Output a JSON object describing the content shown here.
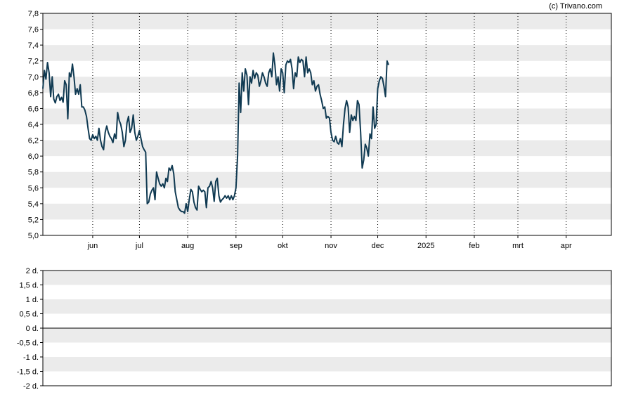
{
  "credit": "(c) Trivano.com",
  "colors": {
    "line": "#103a52",
    "band": "#ebebeb",
    "grid": "#000000",
    "axis": "#000000"
  },
  "chart_data": [
    {
      "type": "line",
      "title": "",
      "xlabel": "",
      "ylabel": "",
      "ylim": [
        5.0,
        7.8
      ],
      "yticks": [
        "5,0",
        "5,2",
        "5,4",
        "5,6",
        "5,8",
        "6,0",
        "6,2",
        "6,4",
        "6,6",
        "6,8",
        "7,0",
        "7,2",
        "7,4",
        "7,6",
        "7,8"
      ],
      "x_range_days": [
        0,
        365
      ],
      "xticks": [
        {
          "label": "jun",
          "day": 32
        },
        {
          "label": "jul",
          "day": 62
        },
        {
          "label": "aug",
          "day": 93
        },
        {
          "label": "sep",
          "day": 124
        },
        {
          "label": "okt",
          "day": 154
        },
        {
          "label": "nov",
          "day": 185
        },
        {
          "label": "dec",
          "day": 215
        },
        {
          "label": "2025",
          "day": 246
        },
        {
          "label": "feb",
          "day": 277
        },
        {
          "label": "mrt",
          "day": 305
        },
        {
          "label": "apr",
          "day": 336
        }
      ],
      "grid": "vertical dotted lines at month ticks, alternating horizontal bands",
      "series": [
        {
          "values": [
            [
              0,
              6.85
            ],
            [
              1,
              7.08
            ],
            [
              2,
              6.97
            ],
            [
              3,
              7.18
            ],
            [
              4,
              7.05
            ],
            [
              5,
              6.75
            ],
            [
              6,
              7.0
            ],
            [
              7,
              6.72
            ],
            [
              8,
              6.67
            ],
            [
              9,
              6.75
            ],
            [
              10,
              6.78
            ],
            [
              11,
              6.7
            ],
            [
              12,
              6.74
            ],
            [
              13,
              6.68
            ],
            [
              14,
              6.95
            ],
            [
              15,
              6.9
            ],
            [
              16,
              6.47
            ],
            [
              17,
              7.05
            ],
            [
              18,
              7.0
            ],
            [
              19,
              7.16
            ],
            [
              20,
              7.0
            ],
            [
              21,
              6.78
            ],
            [
              22,
              6.85
            ],
            [
              23,
              6.78
            ],
            [
              24,
              6.9
            ],
            [
              25,
              6.62
            ],
            [
              26,
              6.62
            ],
            [
              27,
              6.58
            ],
            [
              28,
              6.5
            ],
            [
              29,
              6.35
            ],
            [
              30,
              6.22
            ],
            [
              31,
              6.2
            ],
            [
              32,
              6.27
            ],
            [
              33,
              6.22
            ],
            [
              34,
              6.25
            ],
            [
              35,
              6.2
            ],
            [
              36,
              6.35
            ],
            [
              37,
              6.2
            ],
            [
              38,
              6.12
            ],
            [
              39,
              6.08
            ],
            [
              40,
              6.3
            ],
            [
              41,
              6.38
            ],
            [
              42,
              6.3
            ],
            [
              43,
              6.25
            ],
            [
              44,
              6.22
            ],
            [
              45,
              6.17
            ],
            [
              46,
              6.28
            ],
            [
              47,
              6.22
            ],
            [
              48,
              6.55
            ],
            [
              49,
              6.45
            ],
            [
              50,
              6.4
            ],
            [
              51,
              6.3
            ],
            [
              52,
              6.12
            ],
            [
              53,
              6.2
            ],
            [
              54,
              6.42
            ],
            [
              55,
              6.5
            ],
            [
              56,
              6.3
            ],
            [
              57,
              6.35
            ],
            [
              58,
              6.52
            ],
            [
              59,
              6.3
            ],
            [
              60,
              6.2
            ],
            [
              61,
              6.25
            ],
            [
              62,
              6.32
            ],
            [
              63,
              6.22
            ],
            [
              64,
              6.12
            ],
            [
              65,
              6.08
            ],
            [
              66,
              6.05
            ],
            [
              67,
              5.4
            ],
            [
              68,
              5.42
            ],
            [
              69,
              5.52
            ],
            [
              70,
              5.57
            ],
            [
              71,
              5.6
            ],
            [
              72,
              5.45
            ],
            [
              73,
              5.8
            ],
            [
              74,
              5.72
            ],
            [
              75,
              5.65
            ],
            [
              76,
              5.62
            ],
            [
              77,
              5.65
            ],
            [
              78,
              5.6
            ],
            [
              79,
              5.72
            ],
            [
              80,
              5.68
            ],
            [
              81,
              5.85
            ],
            [
              82,
              5.82
            ],
            [
              83,
              5.88
            ],
            [
              84,
              5.78
            ],
            [
              85,
              5.55
            ],
            [
              86,
              5.45
            ],
            [
              87,
              5.35
            ],
            [
              88,
              5.32
            ],
            [
              89,
              5.3
            ],
            [
              90,
              5.3
            ],
            [
              91,
              5.28
            ],
            [
              92,
              5.4
            ],
            [
              93,
              5.3
            ],
            [
              94,
              5.45
            ],
            [
              95,
              5.58
            ],
            [
              96,
              5.55
            ],
            [
              97,
              5.42
            ],
            [
              98,
              5.35
            ],
            [
              99,
              5.32
            ],
            [
              100,
              5.62
            ],
            [
              101,
              5.58
            ],
            [
              102,
              5.55
            ],
            [
              103,
              5.57
            ],
            [
              104,
              5.55
            ],
            [
              105,
              5.35
            ],
            [
              106,
              5.6
            ],
            [
              107,
              5.62
            ],
            [
              108,
              5.68
            ],
            [
              109,
              5.6
            ],
            [
              110,
              5.43
            ],
            [
              111,
              5.68
            ],
            [
              112,
              5.72
            ],
            [
              113,
              5.5
            ],
            [
              114,
              5.42
            ],
            [
              115,
              5.45
            ],
            [
              116,
              5.47
            ],
            [
              117,
              5.5
            ],
            [
              118,
              5.47
            ],
            [
              119,
              5.5
            ],
            [
              120,
              5.45
            ],
            [
              121,
              5.5
            ],
            [
              122,
              5.45
            ],
            [
              123,
              5.5
            ],
            [
              124,
              5.6
            ],
            [
              125,
              6.0
            ],
            [
              126,
              6.92
            ],
            [
              127,
              6.55
            ],
            [
              128,
              7.05
            ],
            [
              129,
              6.82
            ],
            [
              130,
              7.1
            ],
            [
              131,
              7.02
            ],
            [
              132,
              6.65
            ],
            [
              133,
              7.0
            ],
            [
              134,
              6.92
            ],
            [
              135,
              7.08
            ],
            [
              136,
              6.98
            ],
            [
              137,
              7.05
            ],
            [
              138,
              7.02
            ],
            [
              139,
              6.88
            ],
            [
              140,
              6.95
            ],
            [
              141,
              7.05
            ],
            [
              142,
              7.0
            ],
            [
              143,
              6.92
            ],
            [
              144,
              6.88
            ],
            [
              145,
              7.05
            ],
            [
              146,
              7.1
            ],
            [
              147,
              7.0
            ],
            [
              148,
              7.3
            ],
            [
              149,
              7.15
            ],
            [
              150,
              6.9
            ],
            [
              151,
              7.0
            ],
            [
              152,
              6.82
            ],
            [
              153,
              7.1
            ],
            [
              154,
              7.05
            ],
            [
              155,
              6.8
            ],
            [
              156,
              7.15
            ],
            [
              157,
              7.2
            ],
            [
              158,
              7.18
            ],
            [
              159,
              7.22
            ],
            [
              160,
              7.1
            ],
            [
              161,
              6.85
            ],
            [
              162,
              7.05
            ],
            [
              163,
              7.0
            ],
            [
              164,
              7.25
            ],
            [
              165,
              7.18
            ],
            [
              166,
              7.22
            ],
            [
              167,
              7.2
            ],
            [
              168,
              7.0
            ],
            [
              169,
              7.25
            ],
            [
              170,
              7.05
            ],
            [
              171,
              7.1
            ],
            [
              172,
              7.05
            ],
            [
              173,
              6.9
            ],
            [
              174,
              6.95
            ],
            [
              175,
              6.82
            ],
            [
              176,
              6.88
            ],
            [
              177,
              6.9
            ],
            [
              178,
              6.78
            ],
            [
              179,
              6.7
            ],
            [
              180,
              6.6
            ],
            [
              181,
              6.62
            ],
            [
              182,
              6.48
            ],
            [
              183,
              6.5
            ],
            [
              184,
              6.48
            ],
            [
              185,
              6.3
            ],
            [
              186,
              6.2
            ],
            [
              187,
              6.18
            ],
            [
              188,
              6.25
            ],
            [
              189,
              6.17
            ],
            [
              190,
              6.15
            ],
            [
              191,
              6.22
            ],
            [
              192,
              6.12
            ],
            [
              193,
              6.4
            ],
            [
              194,
              6.6
            ],
            [
              195,
              6.7
            ],
            [
              196,
              6.62
            ],
            [
              197,
              6.3
            ],
            [
              198,
              6.52
            ],
            [
              199,
              6.45
            ],
            [
              200,
              6.5
            ],
            [
              201,
              6.45
            ],
            [
              202,
              6.7
            ],
            [
              203,
              6.65
            ],
            [
              204,
              6.3
            ],
            [
              205,
              5.85
            ],
            [
              206,
              5.95
            ],
            [
              207,
              6.15
            ],
            [
              208,
              6.1
            ],
            [
              209,
              6.0
            ],
            [
              210,
              6.28
            ],
            [
              211,
              6.22
            ],
            [
              212,
              6.62
            ],
            [
              213,
              6.35
            ],
            [
              214,
              6.4
            ],
            [
              215,
              6.85
            ],
            [
              216,
              6.95
            ],
            [
              217,
              7.0
            ],
            [
              218,
              6.98
            ],
            [
              219,
              6.88
            ],
            [
              220,
              6.75
            ],
            [
              221,
              7.2
            ],
            [
              222,
              7.15
            ]
          ]
        }
      ]
    },
    {
      "type": "line",
      "title": "",
      "xlabel": "",
      "ylabel": "",
      "ylim": [
        -2,
        2
      ],
      "yticks": [
        "-2 d.",
        "-1,5 d.",
        "-1 d.",
        "-0,5 d.",
        "0 d.",
        "0,5 d.",
        "1 d.",
        "1,5 d.",
        "2 d."
      ],
      "grid": "alternating horizontal bands, solid line at 0",
      "series": []
    }
  ]
}
